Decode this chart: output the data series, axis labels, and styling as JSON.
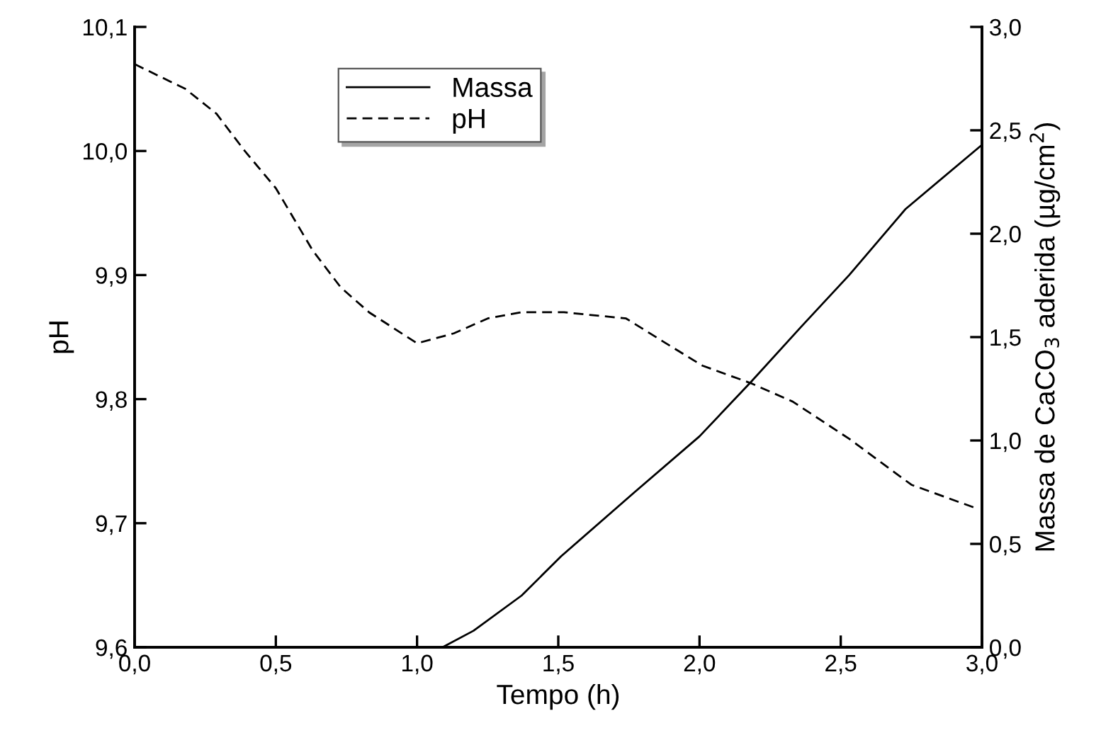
{
  "chart_data": {
    "type": "line",
    "xlabel": "Tempo (h)",
    "ylabel": "pH",
    "y2label": "Massa de CaCO$_{3}$ aderida (µg/cm$^{2}$)",
    "xlim": [
      0,
      3
    ],
    "xticks": [
      {
        "value": 0,
        "label": "0,0"
      },
      {
        "value": 0.5,
        "label": "0,5"
      },
      {
        "value": 1,
        "label": "1,0"
      },
      {
        "value": 1.5,
        "label": "1,5"
      },
      {
        "value": 2,
        "label": "2,0"
      },
      {
        "value": 2.5,
        "label": "2,5"
      },
      {
        "value": 3,
        "label": "3,0"
      }
    ],
    "ylim": [
      9.6,
      10.1
    ],
    "yticks": [
      {
        "value": 9.6,
        "label": "9,6"
      },
      {
        "value": 9.7,
        "label": "9,7"
      },
      {
        "value": 9.8,
        "label": "9,8"
      },
      {
        "value": 9.9,
        "label": "9,9"
      },
      {
        "value": 10.0,
        "label": "10,0"
      },
      {
        "value": 10.1,
        "label": "10,1"
      }
    ],
    "y2lim": [
      0,
      3
    ],
    "y2ticks": [
      {
        "value": 0,
        "label": "0,0"
      },
      {
        "value": 0.5,
        "label": "0,5"
      },
      {
        "value": 1,
        "label": "1,0"
      },
      {
        "value": 1.5,
        "label": "1,5"
      },
      {
        "value": 2,
        "label": "2,0"
      },
      {
        "value": 2.5,
        "label": "2,5"
      },
      {
        "value": 3,
        "label": "3,0"
      }
    ],
    "legend": "top",
    "grid": false,
    "series": [
      {
        "name": "Massa",
        "color": "#000000",
        "axis": "y2",
        "line_style": "solid",
        "x": [
          1.09,
          1.2,
          1.37,
          1.51,
          1.77,
          2.0,
          2.18,
          2.36,
          2.53,
          2.73,
          3.0
        ],
        "values": [
          0,
          0.08,
          0.25,
          0.44,
          0.75,
          1.02,
          1.28,
          1.55,
          1.8,
          2.12,
          2.43
        ]
      },
      {
        "name": "pH",
        "color": "#000000",
        "axis": "y",
        "line_style": "dashed",
        "x": [
          0,
          0.18,
          0.29,
          0.39,
          0.5,
          0.63,
          0.73,
          0.83,
          1.0,
          1.13,
          1.25,
          1.37,
          1.52,
          1.74,
          1.86,
          2.01,
          2.18,
          2.33,
          2.53,
          2.75,
          2.98
        ],
        "values": [
          10.07,
          10.05,
          10.03,
          10.0,
          9.97,
          9.92,
          9.89,
          9.87,
          9.845,
          9.853,
          9.865,
          9.87,
          9.87,
          9.865,
          9.848,
          9.827,
          9.813,
          9.798,
          9.768,
          9.731,
          9.712
        ]
      }
    ]
  }
}
